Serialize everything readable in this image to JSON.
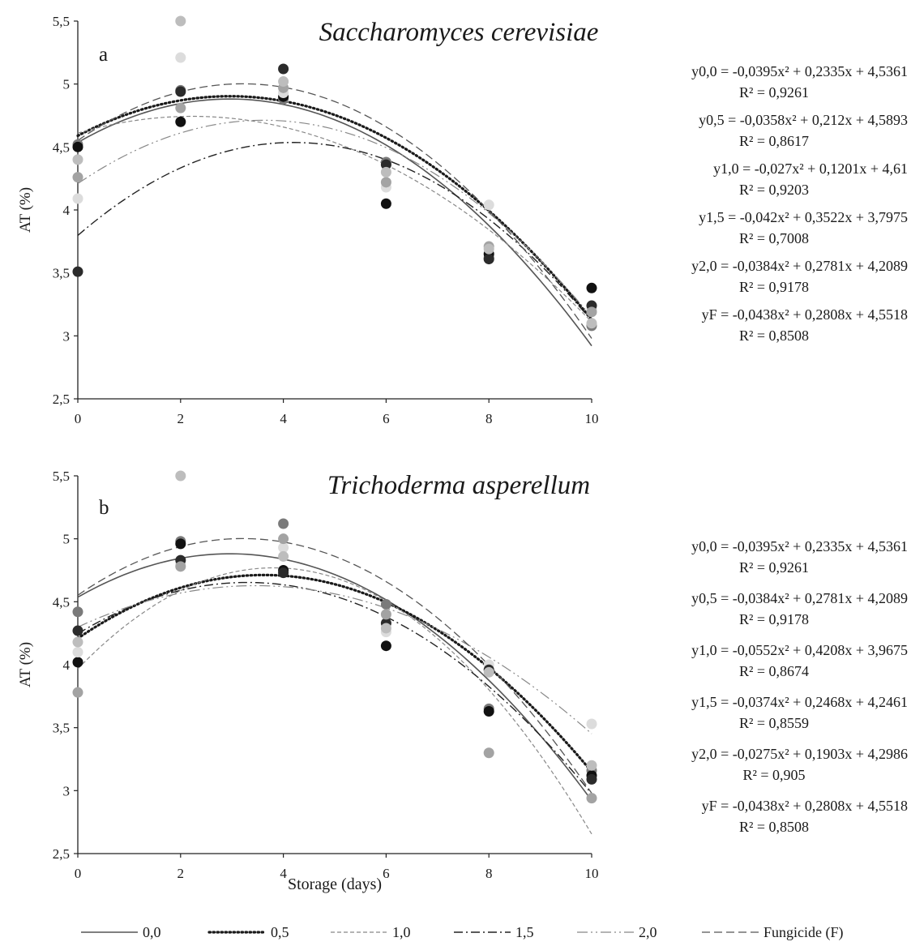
{
  "chart_data": [
    {
      "type": "scatter",
      "panel_label": "a",
      "title": "Saccharomyces cerevisiae",
      "xlabel": "",
      "ylabel": "AT (%)",
      "xlim": [
        0,
        10
      ],
      "ylim": [
        2.5,
        5.5
      ],
      "x_ticks": [
        "0",
        "2",
        "4",
        "6",
        "8",
        "10"
      ],
      "y_ticks": [
        "2,5",
        "3",
        "3,5",
        "4",
        "4,5",
        "5",
        "5,5"
      ],
      "x": [
        0,
        2,
        4,
        6,
        8,
        10
      ],
      "series": [
        {
          "name": "0,0",
          "values": [
            4.52,
            4.95,
            4.88,
            4.38,
            3.62,
            3.08
          ],
          "color": "#555555",
          "dash": "",
          "width": 1.6,
          "fit": {
            "a": -0.0395,
            "b": 0.2335,
            "c": 4.5361
          },
          "equation": "y0,0 = -0,0395x² + 0,2335x + 4,5361",
          "r2": "R² = 0,9261"
        },
        {
          "name": "0,5",
          "values": [
            4.5,
            4.7,
            4.9,
            4.05,
            3.65,
            3.38
          ],
          "color": "#1a1a1a",
          "dash": "1.5 3.5",
          "width": 3.2,
          "fit": {
            "a": -0.0358,
            "b": 0.212,
            "c": 4.5893
          },
          "equation": "y0,5 = -0,0358x² + 0,212x + 4,5893",
          "r2": "R² = 0,8617"
        },
        {
          "name": "1,0",
          "values": [
            4.09,
            5.21,
            4.93,
            4.18,
            4.04,
            3.21
          ],
          "color": "#888888",
          "dash": "5 3",
          "width": 1.2,
          "fit": {
            "a": -0.027,
            "b": 0.1201,
            "c": 4.61
          },
          "equation": "y1,0 = -0,027x² + 0,1201x + 4,61",
          "r2": "R² = 0,9203"
        },
        {
          "name": "1,5",
          "values": [
            3.51,
            4.94,
            5.12,
            4.36,
            3.61,
            3.24
          ],
          "color": "#222222",
          "dash": "11 4 2 4",
          "width": 1.4,
          "fit": {
            "a": -0.042,
            "b": 0.3522,
            "c": 3.7975
          },
          "equation": "y1,5 = -0,042x² + 0,3522x + 3,7975",
          "r2": "R² = 0,7008"
        },
        {
          "name": "2,0",
          "values": [
            4.26,
            4.81,
            4.97,
            4.22,
            3.71,
            3.19
          ],
          "color": "#888888",
          "dash": "13 4 2 4 2 4",
          "width": 1.2,
          "fit": {
            "a": -0.0384,
            "b": 0.2781,
            "c": 4.2089
          },
          "equation": "y2,0 = -0,0384x² + 0,2781x + 4,2089",
          "r2": "R² = 0,9178"
        },
        {
          "name": "Fungicide (F)",
          "values": [
            4.4,
            5.5,
            5.02,
            4.3,
            3.69,
            3.1
          ],
          "color": "#555555",
          "dash": "10 5",
          "width": 1.3,
          "fit": {
            "a": -0.0438,
            "b": 0.2808,
            "c": 4.5518
          },
          "equation": "yF = -0,0438x² + 0,2808x + 4,5518",
          "r2": "R² = 0,8508"
        }
      ]
    },
    {
      "type": "scatter",
      "panel_label": "b",
      "title": "Trichoderma asperellum",
      "xlabel": "Storage (days)",
      "ylabel": "AT (%)",
      "xlim": [
        0,
        10
      ],
      "ylim": [
        2.5,
        5.5
      ],
      "x_ticks": [
        "0",
        "2",
        "4",
        "6",
        "8",
        "10"
      ],
      "y_ticks": [
        "2,5",
        "3",
        "3,5",
        "4",
        "4,5",
        "5",
        "5,5"
      ],
      "x": [
        0,
        2,
        4,
        6,
        8,
        10
      ],
      "series": [
        {
          "name": "0,0",
          "values": [
            4.42,
            4.98,
            5.12,
            4.48,
            3.65,
            3.16
          ],
          "color": "#555555",
          "dash": "",
          "width": 1.6,
          "fit": {
            "a": -0.0395,
            "b": 0.2335,
            "c": 4.5361
          },
          "equation": "y0,0 = -0,0395x² + 0,2335x + 4,5361",
          "r2": "R² = 0,9261"
        },
        {
          "name": "0,5",
          "values": [
            4.02,
            4.96,
            4.75,
            4.15,
            3.63,
            3.12
          ],
          "color": "#1a1a1a",
          "dash": "1.5 3.5",
          "width": 3.2,
          "fit": {
            "a": -0.0384,
            "b": 0.2781,
            "c": 4.2089
          },
          "equation": "y0,5 = -0,0384x² + 0,2781x + 4,2089",
          "r2": "R² = 0,9178"
        },
        {
          "name": "1,0",
          "values": [
            4.1,
            4.8,
            4.93,
            4.26,
            4.0,
            3.53
          ],
          "color": "#888888",
          "dash": "5 3",
          "width": 1.2,
          "fit": {
            "a": -0.0552,
            "b": 0.4208,
            "c": 3.9675
          },
          "equation": "y1,0 = -0,0552x² + 0,4208x + 3,9675",
          "r2": "R² = 0,8674"
        },
        {
          "name": "1,5",
          "values": [
            4.27,
            4.83,
            4.73,
            4.33,
            3.96,
            3.09
          ],
          "color": "#222222",
          "dash": "11 4 2 4",
          "width": 1.4,
          "fit": {
            "a": -0.0374,
            "b": 0.2468,
            "c": 4.2461
          },
          "equation": "y1,5 = -0,0374x² + 0,2468x + 4,2461",
          "r2": "R² = 0,8559"
        },
        {
          "name": "2,0",
          "values": [
            3.78,
            4.78,
            5.0,
            4.4,
            3.3,
            2.94
          ],
          "color": "#888888",
          "dash": "13 4 2 4 2 4",
          "width": 1.2,
          "fit": {
            "a": -0.0275,
            "b": 0.1903,
            "c": 4.2986
          },
          "equation": "y2,0 = -0,0275x² + 0,1903x + 4,2986",
          "r2": "R² = 0,905"
        },
        {
          "name": "Fungicide (F)",
          "values": [
            4.18,
            5.5,
            4.86,
            4.29,
            3.94,
            3.2
          ],
          "color": "#555555",
          "dash": "10 5",
          "width": 1.3,
          "fit": {
            "a": -0.0438,
            "b": 0.2808,
            "c": 4.5518
          },
          "equation": "yF = -0,0438x² + 0,2808x + 4,5518",
          "r2": "R² = 0,8508"
        }
      ]
    }
  ]
}
